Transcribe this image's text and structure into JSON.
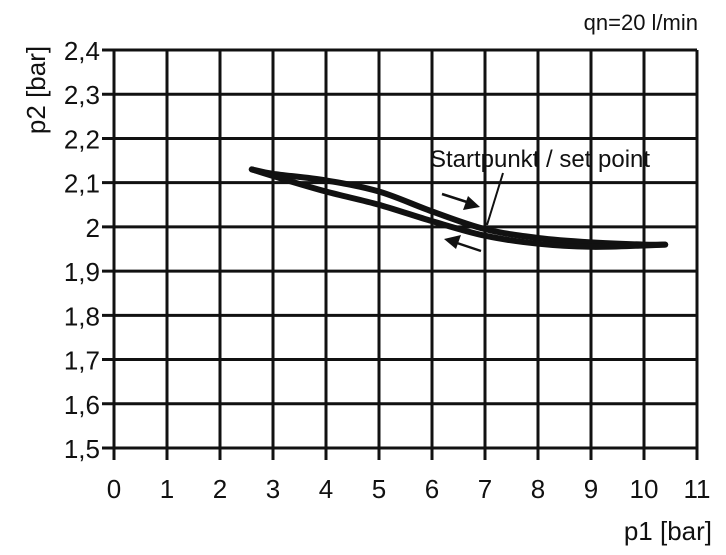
{
  "chart_data": {
    "type": "line",
    "title": "",
    "annotation_top_right": "qn=20 l/min",
    "xlabel": "p1 [bar]",
    "ylabel": "p2 [bar]",
    "xlim": [
      0,
      11
    ],
    "ylim": [
      1.5,
      2.4
    ],
    "x_ticks": [
      "0",
      "1",
      "2",
      "3",
      "4",
      "5",
      "6",
      "7",
      "8",
      "9",
      "10",
      "11"
    ],
    "y_ticks": [
      "1,5",
      "1,6",
      "1,7",
      "1,8",
      "1,9",
      "2",
      "2,1",
      "2,2",
      "2,3",
      "2,4"
    ],
    "grid": true,
    "legend": null,
    "annotations": [
      {
        "text": "Startpunkt / set point",
        "points_to": [
          7,
          1.99
        ]
      },
      {
        "text": "arrow-right-down",
        "meaning": "increasing p1 direction (upper curve)"
      },
      {
        "text": "arrow-left-up",
        "meaning": "decreasing p1 direction (lower curve)"
      }
    ],
    "series": [
      {
        "name": "p1 increasing",
        "x": [
          2.6,
          3,
          4,
          5,
          6,
          7,
          8,
          9,
          10,
          10.4
        ],
        "y": [
          2.13,
          2.12,
          2.105,
          2.08,
          2.035,
          1.995,
          1.975,
          1.965,
          1.96,
          1.96
        ]
      },
      {
        "name": "p1 decreasing",
        "x": [
          10.4,
          10,
          9,
          8,
          7,
          6,
          5,
          4,
          3,
          2.6
        ],
        "y": [
          1.96,
          1.958,
          1.955,
          1.962,
          1.98,
          2.013,
          2.05,
          2.08,
          2.115,
          2.13
        ]
      }
    ]
  }
}
